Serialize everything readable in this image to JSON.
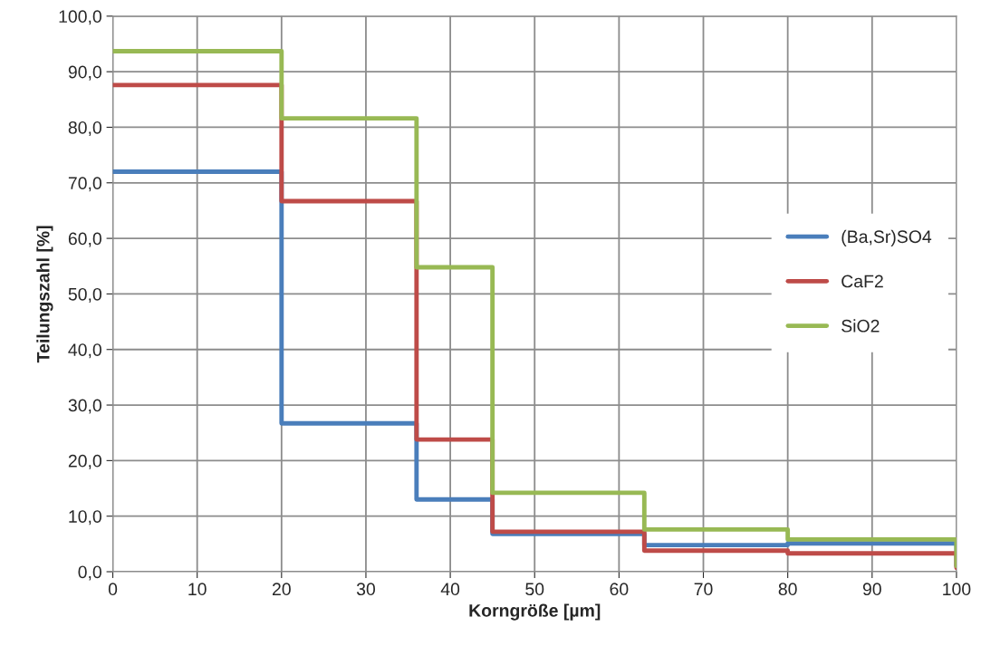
{
  "chart_data": {
    "type": "step",
    "xlabel": "Korngröße [µm]",
    "ylabel": "Teilungszahl [%]",
    "x": [
      0,
      20,
      36,
      45,
      63,
      80,
      100
    ],
    "series": [
      {
        "name": "(Ba,Sr)SO4",
        "color": "#4a7ebb",
        "values": [
          72.0,
          26.7,
          13.0,
          6.8,
          4.8,
          5.1,
          1.0
        ]
      },
      {
        "name": "CaF2",
        "color": "#be4b48",
        "values": [
          87.6,
          66.7,
          23.8,
          7.2,
          3.8,
          3.3,
          0.7
        ]
      },
      {
        "name": "SiO2",
        "color": "#98b954",
        "values": [
          93.7,
          81.6,
          54.8,
          14.2,
          7.6,
          5.8,
          1.0
        ]
      }
    ],
    "xlim": [
      0,
      100
    ],
    "xticks": [
      0,
      10,
      20,
      30,
      40,
      50,
      60,
      70,
      80,
      90,
      100
    ],
    "ylim": [
      0,
      100
    ],
    "yticks": [
      {
        "value": 0,
        "label": "0,0"
      },
      {
        "value": 10,
        "label": "10,0"
      },
      {
        "value": 20,
        "label": "20,0"
      },
      {
        "value": 30,
        "label": "30,0"
      },
      {
        "value": 40,
        "label": "40,0"
      },
      {
        "value": 50,
        "label": "50,0"
      },
      {
        "value": 60,
        "label": "60,0"
      },
      {
        "value": 70,
        "label": "70,0"
      },
      {
        "value": 80,
        "label": "80,0"
      },
      {
        "value": 90,
        "label": "90,0"
      },
      {
        "value": 100,
        "label": "100,0"
      }
    ],
    "grid": true,
    "legend": "right"
  }
}
